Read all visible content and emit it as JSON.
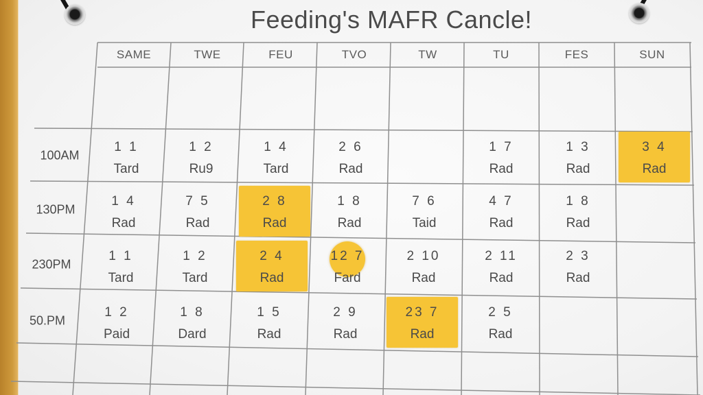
{
  "title": "Feeding's MAFR Cancle!",
  "days": [
    "SAME",
    "TWE",
    "FEU",
    "TVO",
    "TW",
    "TU",
    "FES",
    "SUN"
  ],
  "times": [
    "100AM",
    "130PM",
    "230PM",
    "50.PM"
  ],
  "rows": [
    [
      {
        "num": "1 1",
        "label": "Tard"
      },
      {
        "num": "1 2",
        "label": "Ru9"
      },
      {
        "num": "1 4",
        "label": "Tard"
      },
      {
        "num": "2 6",
        "label": "Rad"
      },
      null,
      {
        "num": "1 7",
        "label": "Rad"
      },
      {
        "num": "1 3",
        "label": "Rad"
      },
      {
        "num": "3 4",
        "label": "Rad",
        "highlight": "box"
      }
    ],
    [
      {
        "num": "1 4",
        "label": "Rad"
      },
      {
        "num": "7 5",
        "label": "Rad"
      },
      {
        "num": "2 8",
        "label": "Rad",
        "highlight": "box"
      },
      {
        "num": "1 8",
        "label": "Rad"
      },
      {
        "num": "7 6",
        "label": "Taid"
      },
      {
        "num": "4 7",
        "label": "Rad"
      },
      {
        "num": "1 8",
        "label": "Rad"
      },
      null
    ],
    [
      {
        "num": "1 1",
        "label": "Tard"
      },
      {
        "num": "1 2",
        "label": "Tard"
      },
      {
        "num": "2 4",
        "label": "Rad",
        "highlight": "box"
      },
      {
        "num": "12 7",
        "label": "Fard",
        "highlight": "circle"
      },
      {
        "num": "2 10",
        "label": "Rad"
      },
      {
        "num": "2 11",
        "label": "Rad"
      },
      {
        "num": "2 3",
        "label": "Rad"
      },
      null
    ],
    [
      {
        "num": "1 2",
        "label": "Paid"
      },
      {
        "num": "1 8",
        "label": "Dard"
      },
      {
        "num": "1 5",
        "label": "Rad"
      },
      {
        "num": "2 9",
        "label": "Rad"
      },
      {
        "num": "23 7",
        "label": "Rad",
        "highlight": "box"
      },
      {
        "num": "2 5",
        "label": "Rad"
      },
      null,
      null
    ]
  ],
  "colors": {
    "highlight": "#f6c436",
    "ink": "#4a4a4a",
    "line": "#8a8a8a",
    "paper": "#f4f4f4",
    "wood": "#cf9a3c"
  }
}
